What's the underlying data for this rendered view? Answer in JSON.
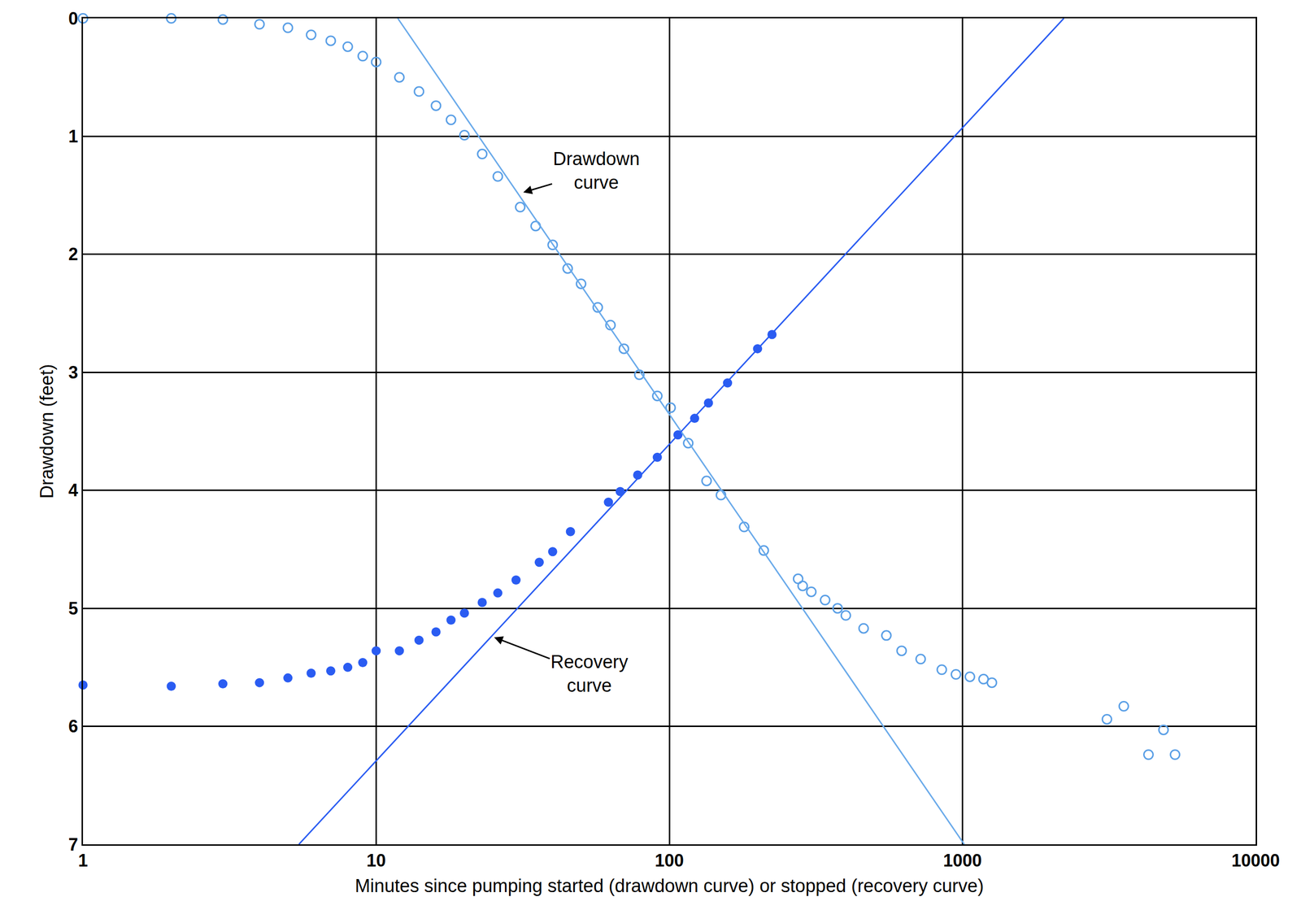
{
  "chart_data": {
    "type": "scatter",
    "x_label": "Minutes since pumping started (drawdown curve) or stopped (recovery curve)",
    "y_label": "Drawdown (feet)",
    "log": "x",
    "grid": true,
    "xlim": [
      1,
      10000
    ],
    "xticks": [
      1,
      10,
      100,
      1000,
      10000
    ],
    "ylim": [
      7,
      0
    ],
    "yticks": [
      0,
      1,
      2,
      3,
      4,
      5,
      6,
      7
    ],
    "series": [
      {
        "type": "scatter",
        "marker": "open_circle",
        "color": "#5a9fe6",
        "x": [
          1,
          2,
          3,
          4,
          5,
          6,
          7,
          8,
          9,
          10,
          12,
          14,
          16,
          18,
          20,
          23,
          26,
          31,
          35,
          40,
          45,
          50,
          57,
          63,
          70,
          79,
          91,
          101,
          116,
          134,
          150,
          180,
          210,
          275,
          285,
          305,
          340,
          375,
          400,
          460,
          550,
          620,
          720,
          850,
          950,
          1060,
          1180,
          1260,
          3110,
          3550,
          4310,
          4850,
          5310
        ],
        "values": [
          0,
          0,
          0.01,
          0.05,
          0.08,
          0.14,
          0.19,
          0.24,
          0.32,
          0.37,
          0.5,
          0.62,
          0.74,
          0.86,
          0.99,
          1.15,
          1.34,
          1.6,
          1.76,
          1.92,
          2.12,
          2.25,
          2.45,
          2.6,
          2.8,
          3.02,
          3.2,
          3.3,
          3.6,
          3.92,
          4.04,
          4.31,
          4.51,
          4.75,
          4.81,
          4.86,
          4.93,
          5.0,
          5.06,
          5.17,
          5.23,
          5.36,
          5.43,
          5.52,
          5.56,
          5.58,
          5.6,
          5.63,
          5.94,
          5.83,
          6.24,
          6.03,
          6.24
        ]
      },
      {
        "type": "scatter",
        "marker": "filled_circle",
        "color": "#2a5cf2",
        "x": [
          1,
          2,
          3,
          4,
          5,
          6,
          7,
          8,
          9,
          10,
          12,
          14,
          16,
          18,
          20,
          23,
          26,
          30,
          36,
          40,
          46,
          62,
          68,
          78,
          91,
          107,
          122,
          136,
          158,
          200,
          224
        ],
        "values": [
          5.65,
          5.66,
          5.64,
          5.63,
          5.59,
          5.55,
          5.53,
          5.5,
          5.46,
          5.36,
          5.36,
          5.27,
          5.2,
          5.1,
          5.04,
          4.95,
          4.87,
          4.76,
          4.61,
          4.52,
          4.35,
          4.1,
          4.01,
          3.87,
          3.72,
          3.53,
          3.39,
          3.26,
          3.09,
          2.8,
          2.68
        ]
      },
      {
        "type": "line",
        "line_style": "solid",
        "color": "#6aaaea",
        "x": [
          11.85,
          1014
        ],
        "values": [
          0,
          7
        ]
      },
      {
        "type": "line",
        "line_style": "solid",
        "color": "#2a5cf2",
        "x": [
          5.45,
          2217
        ],
        "values": [
          7,
          0
        ]
      }
    ],
    "annotations": [
      {
        "text": "Drawdown curve",
        "x": 31.3,
        "y": 1.48
      },
      {
        "text": "Recovery curve",
        "x": 24.9,
        "y": 5.24
      }
    ]
  }
}
